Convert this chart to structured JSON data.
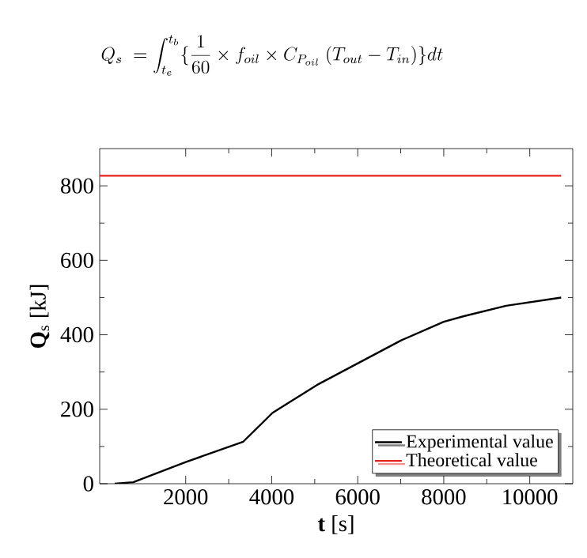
{
  "chart_data": {
    "type": "line",
    "title": "Q_s \\;=\\int_{t_e}^{t_b}\\{\\frac{1}{60}\\times f_{oil}\\times C_{P_{oil}}\\ (T_{out}-T_{in})\\}dt",
    "xlabel": "**t** [s]",
    "ylabel": "**Q**$_{s}$ [kJ]",
    "xlim": [
      0,
      11000
    ],
    "ylim": [
      0,
      900
    ],
    "xticks": [
      2000,
      4000,
      6000,
      8000,
      10000
    ],
    "yticks": [
      0,
      200,
      400,
      600,
      800
    ],
    "legend": "bottom right",
    "grid": false,
    "marker": "none",
    "line_style": "solid",
    "series": [
      {
        "name": "Experimental value",
        "color": "#000000",
        "x": [
          350,
          780,
          2000,
          3340,
          4015,
          5050,
          6030,
          7010,
          8000,
          8470,
          9450,
          10730
        ],
        "values": [
          0,
          4,
          58,
          113,
          190,
          265,
          325,
          385,
          435,
          450,
          478,
          500
        ]
      },
      {
        "name": "Theoretical value",
        "color": "#e8201c",
        "x": [
          0,
          10730
        ],
        "values": [
          827,
          827
        ]
      }
    ]
  }
}
